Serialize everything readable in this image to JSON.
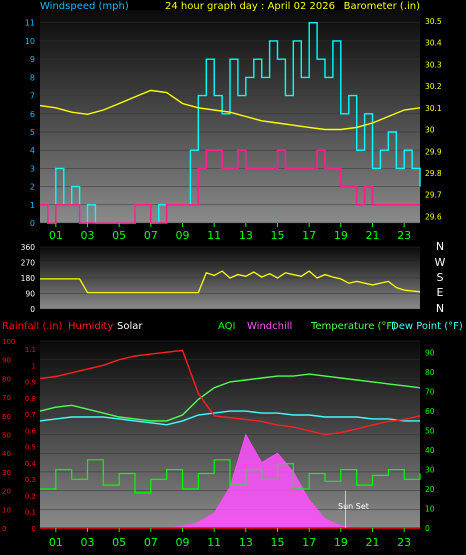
{
  "title": "24 hour graph day : April 02 2026",
  "colors": {
    "windspeed_label": "#00bfff",
    "windspeed_line": "#00ffff",
    "gust": "#ff1e8c",
    "barometer": "#ffff00",
    "direction": "#ffff00",
    "rainfall": "#ff0000",
    "humidity": "#ff2020",
    "solar": "#ffffff",
    "aqi": "#00ff00",
    "windchill": "#ff50ff",
    "temperature": "#50ff50",
    "dewpoint": "#40ffff",
    "hour_ticks": "#00ff00"
  },
  "chart_data": [
    {
      "type": "line",
      "panel": "wind",
      "left_label": "Windspeed (mph)",
      "right_label": "Barometer (.in)",
      "left_ticks": [
        "0",
        "1",
        "2",
        "3",
        "4",
        "5",
        "6",
        "7",
        "8",
        "9",
        "10",
        "11"
      ],
      "right_ticks": [
        "29.6",
        "29.7",
        "29.8",
        "29.9",
        "30",
        "30.1",
        "30.2",
        "30.3",
        "30.4",
        "30.5"
      ],
      "x_ticks": [
        "01",
        "03",
        "05",
        "07",
        "09",
        "11",
        "13",
        "15",
        "17",
        "19",
        "21",
        "23"
      ],
      "ylim_left": [
        0,
        11.7
      ],
      "ylim_right": [
        29.57,
        30.55
      ],
      "barometer": {
        "x": [
          0,
          1,
          2,
          3,
          4,
          5,
          6,
          7,
          8,
          9,
          10,
          11,
          12,
          13,
          14,
          15,
          16,
          17,
          18,
          19,
          20,
          21,
          22,
          23,
          24
        ],
        "values": [
          30.11,
          30.1,
          30.08,
          30.07,
          30.09,
          30.12,
          30.15,
          30.18,
          30.17,
          30.12,
          30.1,
          30.09,
          30.08,
          30.06,
          30.04,
          30.03,
          30.02,
          30.01,
          30.0,
          30.0,
          30.01,
          30.03,
          30.06,
          30.09,
          30.1
        ]
      },
      "windspeed": {
        "x": [
          0,
          0.5,
          1,
          1.5,
          2,
          2.5,
          3,
          3.5,
          4,
          4.5,
          5,
          5.5,
          6,
          6.5,
          7,
          7.5,
          8,
          8.5,
          9,
          9.5,
          10,
          10.5,
          11,
          11.5,
          12,
          12.5,
          13,
          13.5,
          14,
          14.5,
          15,
          15.5,
          16,
          16.5,
          17,
          17.5,
          18,
          18.5,
          19,
          19.5,
          20,
          20.5,
          21,
          21.5,
          22,
          22.5,
          23,
          23.5,
          24
        ],
        "values": [
          1,
          0,
          3,
          1,
          2,
          0,
          1,
          0,
          0,
          0,
          0,
          0,
          1,
          1,
          0,
          1,
          1,
          1,
          1,
          4,
          7,
          9,
          7,
          6,
          9,
          7,
          8,
          9,
          8,
          10,
          9,
          7,
          10,
          8,
          11,
          9,
          8,
          10,
          6,
          7,
          4,
          6,
          3,
          4,
          5,
          3,
          4,
          3,
          2
        ]
      },
      "gust": {
        "x": [
          0,
          0.5,
          1,
          1.5,
          2,
          2.5,
          3,
          3.5,
          4,
          4.5,
          5,
          5.5,
          6,
          6.5,
          7,
          7.5,
          8,
          8.5,
          9,
          9.5,
          10,
          10.5,
          11,
          11.5,
          12,
          12.5,
          13,
          13.5,
          14,
          14.5,
          15,
          15.5,
          16,
          16.5,
          17,
          17.5,
          18,
          18.5,
          19,
          19.5,
          20,
          20.5,
          21,
          21.5,
          22,
          22.5,
          23,
          23.5,
          24
        ],
        "values": [
          1,
          0,
          1,
          1,
          1,
          0,
          0,
          0,
          0,
          0,
          0,
          0,
          1,
          1,
          0,
          0,
          1,
          1,
          1,
          1,
          3,
          4,
          4,
          3,
          3,
          4,
          3,
          3,
          3,
          3,
          4,
          3,
          3,
          3,
          3,
          4,
          3,
          3,
          2,
          2,
          1,
          2,
          1,
          1,
          1,
          1,
          1,
          1,
          1
        ]
      }
    },
    {
      "type": "line",
      "panel": "direction",
      "left_ticks": [
        "0",
        "90",
        "180",
        "270",
        "360"
      ],
      "compass": [
        "N",
        "W",
        "S",
        "E",
        "N"
      ],
      "ylim": [
        0,
        360
      ],
      "direction": {
        "x": [
          0,
          1,
          2,
          2.5,
          3,
          4,
          5,
          6,
          7,
          8,
          9,
          9.5,
          10,
          10.5,
          11,
          11.5,
          12,
          12.5,
          13,
          13.5,
          14,
          14.5,
          15,
          15.5,
          16,
          16.5,
          17,
          17.5,
          18,
          18.5,
          19,
          19.5,
          20,
          21,
          22,
          22.5,
          23,
          24
        ],
        "values": [
          175,
          175,
          175,
          175,
          95,
          95,
          95,
          95,
          95,
          95,
          95,
          95,
          95,
          210,
          195,
          220,
          180,
          200,
          190,
          215,
          185,
          205,
          180,
          210,
          200,
          190,
          220,
          180,
          200,
          185,
          175,
          150,
          160,
          140,
          160,
          125,
          110,
          100
        ]
      }
    },
    {
      "type": "line",
      "panel": "weather",
      "top_labels": {
        "rainfall": "Rainfall (.in)",
        "humidity": "Humidity",
        "solar": "Solar",
        "aqi": "AQI",
        "windchill": "Windchill",
        "temperature": "Temperature (°F)",
        "dewpoint": "Dew Point (°F)"
      },
      "left_ticks_pct": [
        "0",
        "10",
        "20",
        "30",
        "40",
        "50",
        "60",
        "70",
        "80",
        "90",
        "100"
      ],
      "left_ticks_rain": [
        "0",
        "0.1",
        "0.2",
        "0.3",
        "0.4",
        "0.5",
        "0.6",
        "0.7",
        "0.8",
        "0.9",
        "1",
        "1.1"
      ],
      "right_ticks": [
        "0",
        "10",
        "20",
        "30",
        "40",
        "50",
        "60",
        "70",
        "80",
        "90"
      ],
      "ylim_pct": [
        0,
        100
      ],
      "ylim_right": [
        0,
        96
      ],
      "annotation": "Sun Set",
      "humidity": {
        "x": [
          0,
          1,
          2,
          3,
          4,
          5,
          6,
          7,
          8,
          9,
          10,
          11,
          12,
          13,
          14,
          15,
          16,
          17,
          18,
          19,
          20,
          21,
          22,
          23,
          24
        ],
        "values": [
          80,
          81,
          83,
          85,
          87,
          90,
          92,
          93,
          94,
          95,
          72,
          60,
          59,
          58,
          57,
          55,
          54,
          52,
          50,
          51,
          53,
          55,
          57,
          58,
          60
        ]
      },
      "temperature": {
        "x": [
          0,
          1,
          2,
          3,
          4,
          5,
          6,
          7,
          8,
          9,
          10,
          11,
          12,
          13,
          14,
          15,
          16,
          17,
          18,
          19,
          20,
          21,
          22,
          23,
          24
        ],
        "values": [
          60,
          62,
          63,
          61,
          59,
          57,
          56,
          55,
          55,
          58,
          66,
          72,
          75,
          76,
          77,
          78,
          78,
          79,
          78,
          77,
          76,
          75,
          74,
          73,
          72
        ]
      },
      "dewpoint": {
        "x": [
          0,
          1,
          2,
          3,
          4,
          5,
          6,
          7,
          8,
          9,
          10,
          11,
          12,
          13,
          14,
          15,
          16,
          17,
          18,
          19,
          20,
          21,
          22,
          23,
          24
        ],
        "values": [
          55,
          56,
          57,
          57,
          57,
          56,
          55,
          54,
          53,
          55,
          58,
          59,
          60,
          60,
          59,
          59,
          58,
          58,
          57,
          57,
          57,
          56,
          56,
          55,
          55
        ]
      },
      "aqi": {
        "x": [
          0,
          1,
          2,
          3,
          4,
          5,
          6,
          7,
          8,
          9,
          10,
          11,
          12,
          13,
          14,
          15,
          16,
          17,
          18,
          19,
          20,
          21,
          22,
          23,
          24
        ],
        "values": [
          20,
          30,
          25,
          35,
          22,
          28,
          18,
          25,
          30,
          20,
          28,
          35,
          22,
          30,
          25,
          33,
          20,
          28,
          24,
          30,
          22,
          27,
          30,
          25,
          28
        ]
      },
      "solar": {
        "x": [
          0,
          1,
          2,
          3,
          4,
          5,
          6,
          7,
          8,
          9,
          10,
          11,
          12,
          13,
          14,
          15,
          16,
          17,
          18,
          19,
          20,
          21,
          22,
          23,
          24
        ],
        "values": [
          0,
          0,
          0,
          0,
          0,
          0,
          0,
          0,
          0,
          1,
          3,
          8,
          22,
          50,
          35,
          40,
          30,
          15,
          5,
          1,
          0,
          0,
          0,
          0,
          0
        ]
      },
      "rainfall": {
        "x": [
          0,
          24
        ],
        "values": [
          0,
          0
        ]
      }
    }
  ]
}
